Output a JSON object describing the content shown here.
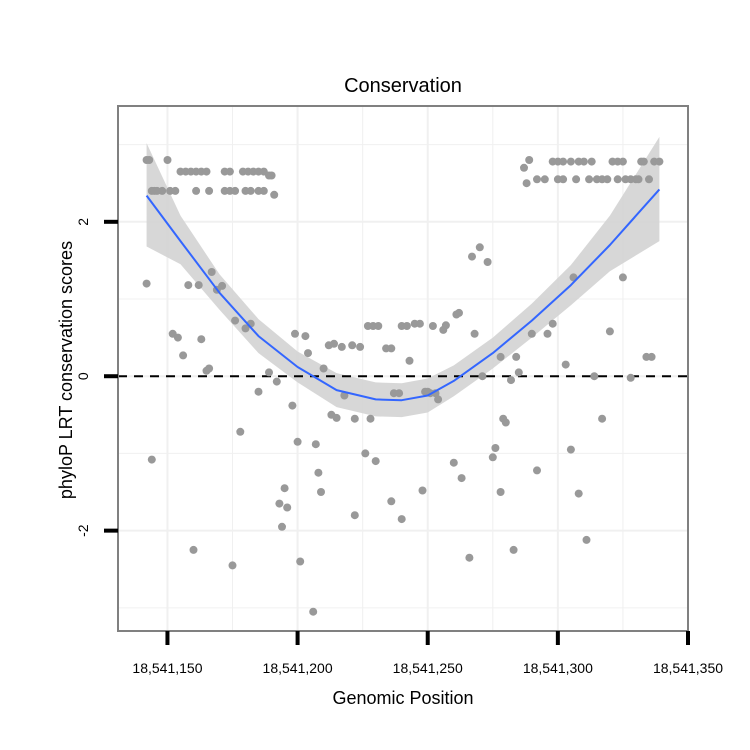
{
  "chart_data": {
    "type": "scatter",
    "title": "Conservation",
    "xlabel": "Genomic Position",
    "ylabel": "phyloP LRT conservation scores",
    "xlim": [
      18541131,
      18541350
    ],
    "ylim": [
      -3.3,
      3.5
    ],
    "x_ticks": [
      18541150,
      18541200,
      18541250,
      18541300,
      18541350
    ],
    "x_tick_labels": [
      "18,541,150",
      "18,541,200",
      "18,541,250",
      "18,541,300",
      "18,541,350"
    ],
    "y_ticks": [
      -2,
      0,
      2
    ],
    "y_tick_labels": [
      "-2",
      "0",
      "2"
    ],
    "reference_line": {
      "y": 0,
      "style": "dashed"
    },
    "grid": true,
    "colors": {
      "points": "#999999",
      "smooth_line": "#3366ff",
      "confidence_band": "#d3d3d3",
      "panel_border": "#808080",
      "grid": "#f0f0f0"
    },
    "series": [
      {
        "name": "phyloP scores",
        "points": [
          [
            18541142,
            2.8
          ],
          [
            18541143,
            2.8
          ],
          [
            18541144,
            2.4
          ],
          [
            18541145,
            2.4
          ],
          [
            18541146,
            2.4
          ],
          [
            18541148,
            2.4
          ],
          [
            18541150,
            2.8
          ],
          [
            18541151,
            2.4
          ],
          [
            18541153,
            2.4
          ],
          [
            18541155,
            2.65
          ],
          [
            18541157,
            2.65
          ],
          [
            18541159,
            2.65
          ],
          [
            18541161,
            2.65
          ],
          [
            18541163,
            2.65
          ],
          [
            18541165,
            2.65
          ],
          [
            18541161,
            2.4
          ],
          [
            18541166,
            2.4
          ],
          [
            18541172,
            2.4
          ],
          [
            18541174,
            2.4
          ],
          [
            18541176,
            2.4
          ],
          [
            18541172,
            2.65
          ],
          [
            18541174,
            2.65
          ],
          [
            18541179,
            2.65
          ],
          [
            18541181,
            2.65
          ],
          [
            18541183,
            2.65
          ],
          [
            18541185,
            2.65
          ],
          [
            18541187,
            2.65
          ],
          [
            18541189,
            2.6
          ],
          [
            18541190,
            2.6
          ],
          [
            18541180,
            2.4
          ],
          [
            18541182,
            2.4
          ],
          [
            18541185,
            2.4
          ],
          [
            18541187,
            2.4
          ],
          [
            18541191,
            2.35
          ],
          [
            18541142,
            1.2
          ],
          [
            18541144,
            -1.08
          ],
          [
            18541152,
            0.55
          ],
          [
            18541154,
            0.5
          ],
          [
            18541156,
            0.27
          ],
          [
            18541158,
            1.18
          ],
          [
            18541160,
            -2.25
          ],
          [
            18541162,
            1.18
          ],
          [
            18541163,
            0.48
          ],
          [
            18541165,
            0.07
          ],
          [
            18541166,
            0.1
          ],
          [
            18541167,
            1.35
          ],
          [
            18541169,
            1.12
          ],
          [
            18541171,
            1.17
          ],
          [
            18541175,
            -2.45
          ],
          [
            18541176,
            0.72
          ],
          [
            18541178,
            -0.72
          ],
          [
            18541180,
            0.62
          ],
          [
            18541182,
            0.68
          ],
          [
            18541185,
            -0.2
          ],
          [
            18541189,
            0.05
          ],
          [
            18541192,
            -0.07
          ],
          [
            18541193,
            -1.65
          ],
          [
            18541194,
            -1.95
          ],
          [
            18541195,
            -1.45
          ],
          [
            18541196,
            -1.7
          ],
          [
            18541198,
            -0.38
          ],
          [
            18541199,
            0.55
          ],
          [
            18541200,
            -0.85
          ],
          [
            18541201,
            -2.4
          ],
          [
            18541203,
            0.52
          ],
          [
            18541204,
            0.3
          ],
          [
            18541206,
            -3.05
          ],
          [
            18541207,
            -0.88
          ],
          [
            18541208,
            -1.25
          ],
          [
            18541209,
            -1.5
          ],
          [
            18541210,
            0.1
          ],
          [
            18541212,
            0.4
          ],
          [
            18541214,
            0.42
          ],
          [
            18541213,
            -0.5
          ],
          [
            18541215,
            -0.54
          ],
          [
            18541217,
            0.38
          ],
          [
            18541218,
            -0.25
          ],
          [
            18541221,
            0.4
          ],
          [
            18541222,
            -0.55
          ],
          [
            18541222,
            -1.8
          ],
          [
            18541224,
            0.38
          ],
          [
            18541227,
            0.65
          ],
          [
            18541229,
            0.65
          ],
          [
            18541231,
            0.65
          ],
          [
            18541226,
            -1.0
          ],
          [
            18541228,
            -0.55
          ],
          [
            18541230,
            -1.1
          ],
          [
            18541234,
            0.36
          ],
          [
            18541236,
            0.36
          ],
          [
            18541237,
            -0.22
          ],
          [
            18541236,
            -1.62
          ],
          [
            18541239,
            -0.22
          ],
          [
            18541240,
            -1.85
          ],
          [
            18541240,
            0.65
          ],
          [
            18541242,
            0.65
          ],
          [
            18541243,
            0.2
          ],
          [
            18541245,
            0.68
          ],
          [
            18541247,
            0.68
          ],
          [
            18541248,
            -1.48
          ],
          [
            18541249,
            -0.2
          ],
          [
            18541250,
            -0.2
          ],
          [
            18541251,
            -0.22
          ],
          [
            18541252,
            0.65
          ],
          [
            18541253,
            -0.22
          ],
          [
            18541254,
            -0.3
          ],
          [
            18541256,
            0.6
          ],
          [
            18541257,
            0.66
          ],
          [
            18541260,
            -1.12
          ],
          [
            18541261,
            0.8
          ],
          [
            18541262,
            0.82
          ],
          [
            18541263,
            -1.32
          ],
          [
            18541266,
            -2.35
          ],
          [
            18541267,
            1.55
          ],
          [
            18541268,
            0.55
          ],
          [
            18541270,
            1.67
          ],
          [
            18541271,
            0.0
          ],
          [
            18541273,
            1.48
          ],
          [
            18541275,
            -1.05
          ],
          [
            18541276,
            -0.93
          ],
          [
            18541278,
            -1.5
          ],
          [
            18541278,
            0.25
          ],
          [
            18541279,
            -0.55
          ],
          [
            18541280,
            -0.6
          ],
          [
            18541282,
            -0.05
          ],
          [
            18541283,
            -2.25
          ],
          [
            18541284,
            0.25
          ],
          [
            18541285,
            0.05
          ],
          [
            18541287,
            2.7
          ],
          [
            18541288,
            2.5
          ],
          [
            18541289,
            2.8
          ],
          [
            18541290,
            0.55
          ],
          [
            18541292,
            -1.22
          ],
          [
            18541292,
            2.55
          ],
          [
            18541295,
            2.55
          ],
          [
            18541296,
            0.55
          ],
          [
            18541298,
            0.68
          ],
          [
            18541298,
            2.78
          ],
          [
            18541300,
            2.78
          ],
          [
            18541300,
            2.55
          ],
          [
            18541302,
            2.78
          ],
          [
            18541302,
            2.55
          ],
          [
            18541303,
            0.15
          ],
          [
            18541305,
            2.78
          ],
          [
            18541305,
            -0.95
          ],
          [
            18541306,
            1.28
          ],
          [
            18541307,
            2.55
          ],
          [
            18541308,
            2.78
          ],
          [
            18541308,
            -1.52
          ],
          [
            18541310,
            2.78
          ],
          [
            18541311,
            -2.12
          ],
          [
            18541312,
            2.55
          ],
          [
            18541313,
            2.78
          ],
          [
            18541314,
            0.0
          ],
          [
            18541315,
            2.55
          ],
          [
            18541317,
            2.55
          ],
          [
            18541317,
            -0.55
          ],
          [
            18541319,
            2.55
          ],
          [
            18541320,
            0.58
          ],
          [
            18541321,
            2.78
          ],
          [
            18541323,
            2.78
          ],
          [
            18541323,
            2.55
          ],
          [
            18541325,
            2.78
          ],
          [
            18541325,
            1.28
          ],
          [
            18541326,
            2.55
          ],
          [
            18541328,
            2.55
          ],
          [
            18541328,
            -0.02
          ],
          [
            18541330,
            2.55
          ],
          [
            18541331,
            2.55
          ],
          [
            18541332,
            2.78
          ],
          [
            18541333,
            2.78
          ],
          [
            18541334,
            0.25
          ],
          [
            18541336,
            0.25
          ],
          [
            18541337,
            2.78
          ],
          [
            18541339,
            2.78
          ],
          [
            18541335,
            2.55
          ]
        ]
      },
      {
        "name": "loess fit",
        "x": [
          18541142,
          18541155,
          18541170,
          18541185,
          18541200,
          18541215,
          18541230,
          18541240,
          18541250,
          18541260,
          18541275,
          18541290,
          18541305,
          18541320,
          18541339
        ],
        "y": [
          2.34,
          1.75,
          1.08,
          0.52,
          0.12,
          -0.18,
          -0.3,
          -0.31,
          -0.25,
          -0.06,
          0.3,
          0.72,
          1.18,
          1.7,
          2.42
        ],
        "ci_lower": [
          1.68,
          1.45,
          0.86,
          0.3,
          -0.08,
          -0.4,
          -0.52,
          -0.53,
          -0.47,
          -0.26,
          0.1,
          0.5,
          0.92,
          1.36,
          1.75
        ],
        "ci_upper": [
          3.02,
          2.08,
          1.32,
          0.74,
          0.32,
          0.04,
          -0.08,
          -0.09,
          -0.03,
          0.14,
          0.5,
          0.94,
          1.44,
          2.08,
          3.1
        ]
      }
    ]
  }
}
